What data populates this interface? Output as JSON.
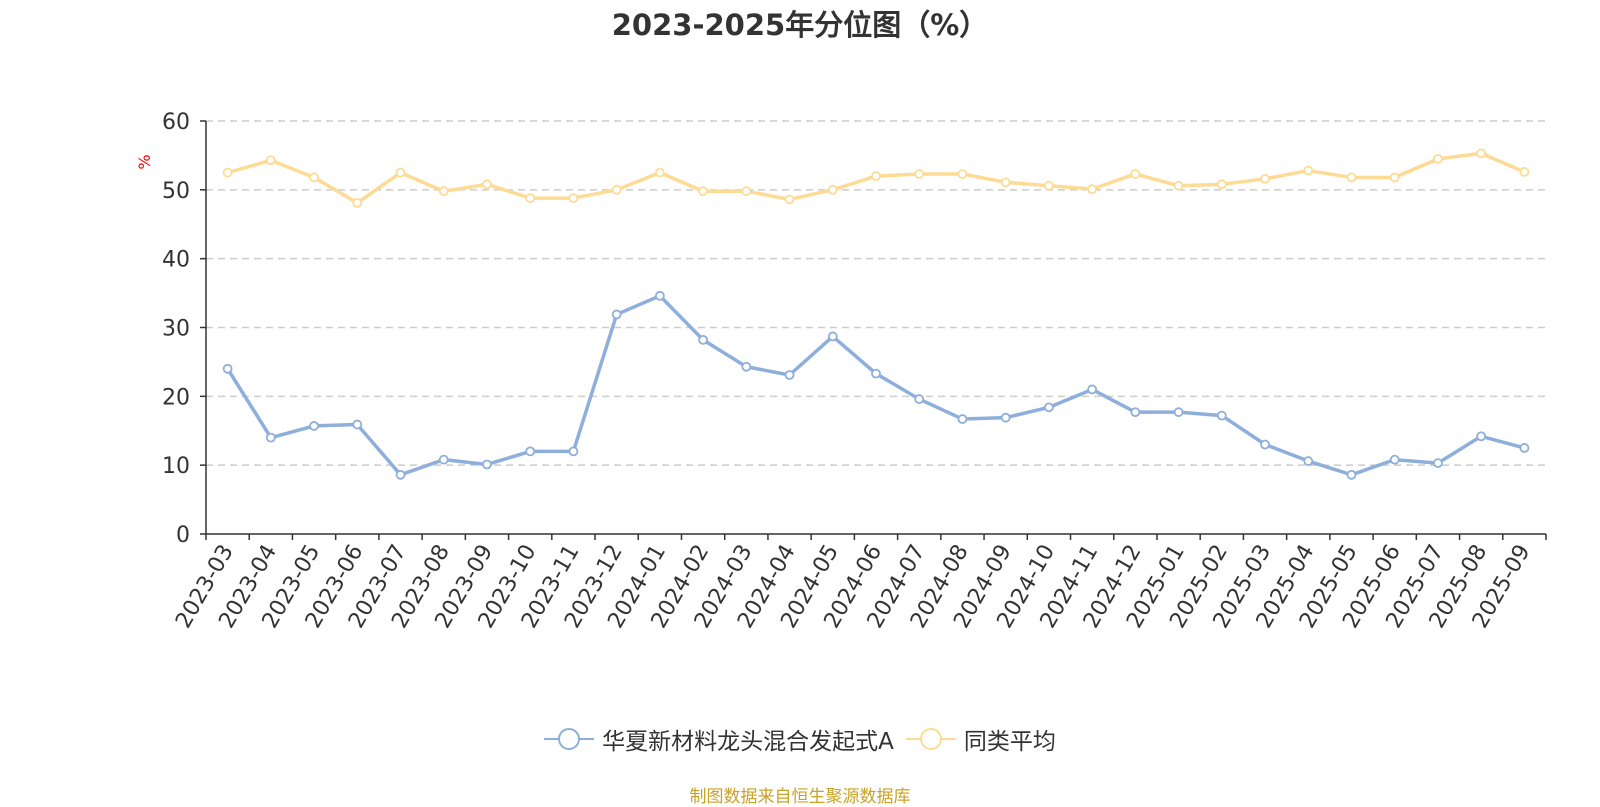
{
  "chart_data": {
    "type": "line",
    "title": "2023-2025年分位图（%）",
    "ylabel": "%",
    "ylim": [
      0,
      60
    ],
    "yticks": [
      0,
      10,
      20,
      30,
      40,
      50,
      60
    ],
    "grid": true,
    "legend_position": "bottom",
    "categories": [
      "2023-03",
      "2023-04",
      "2023-05",
      "2023-06",
      "2023-07",
      "2023-08",
      "2023-09",
      "2023-10",
      "2023-11",
      "2023-12",
      "2024-01",
      "2024-02",
      "2024-03",
      "2024-04",
      "2024-05",
      "2024-06",
      "2024-07",
      "2024-08",
      "2024-09",
      "2024-10",
      "2024-11",
      "2024-12",
      "2025-01",
      "2025-02",
      "2025-03",
      "2025-04",
      "2025-05",
      "2025-06",
      "2025-07",
      "2025-08",
      "2025-09"
    ],
    "series": [
      {
        "name": "华夏新材料龙头混合发起式A",
        "color": "#8eaedb",
        "values": [
          24.0,
          14.0,
          15.7,
          15.9,
          8.6,
          10.8,
          10.1,
          12.0,
          12.0,
          31.9,
          34.6,
          28.2,
          24.3,
          23.1,
          28.7,
          23.3,
          19.6,
          16.7,
          16.9,
          18.4,
          21.0,
          17.7,
          17.7,
          17.2,
          13.0,
          10.6,
          8.6,
          10.8,
          10.3,
          14.2,
          12.5
        ]
      },
      {
        "name": "同类平均",
        "color": "#fddb95",
        "values": [
          52.5,
          54.3,
          51.8,
          48.1,
          52.5,
          49.8,
          50.8,
          48.8,
          48.8,
          50.0,
          52.5,
          49.8,
          49.8,
          48.6,
          50.0,
          52.0,
          52.3,
          52.3,
          51.1,
          50.6,
          50.1,
          52.3,
          50.6,
          50.8,
          51.6,
          52.8,
          51.8,
          51.8,
          54.5,
          55.3,
          52.6
        ]
      }
    ]
  },
  "footer": {
    "source_note": "制图数据来自恒生聚源数据库"
  }
}
